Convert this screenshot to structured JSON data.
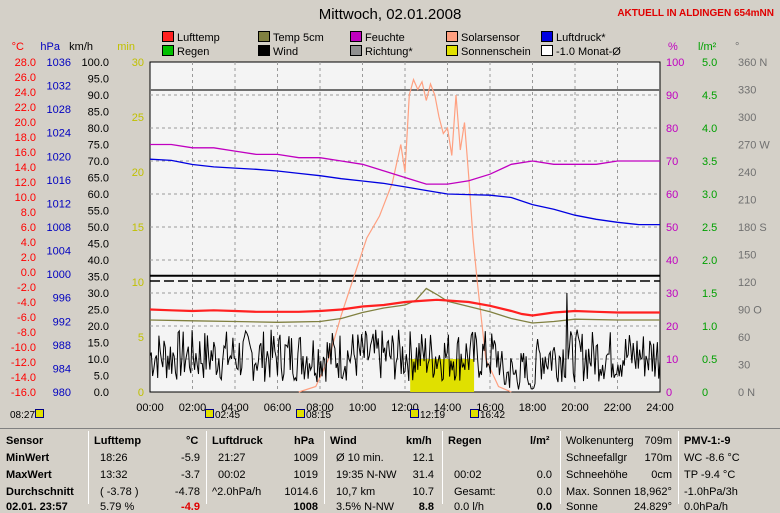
{
  "title": "Mittwoch, 02.01.2008",
  "station": "AKTUELL IN ALDINGEN 654mNN",
  "legend": [
    {
      "label": "Lufttemp",
      "color": "#ff2020"
    },
    {
      "label": "Temp 5cm",
      "color": "#808040"
    },
    {
      "label": "Feuchte",
      "color": "#c000c0"
    },
    {
      "label": "Solarsensor",
      "color": "#ffa080"
    },
    {
      "label": "Luftdruck*",
      "color": "#0000e0"
    },
    {
      "label": "Regen",
      "color": "#00c000"
    },
    {
      "label": "Wind",
      "color": "#000000"
    },
    {
      "label": "Richtung*",
      "color": "#909090"
    },
    {
      "label": "Sonnenschein",
      "color": "#e0e000"
    },
    {
      "label": "-1.0 Monat-Ø",
      "color": "#ffffff"
    }
  ],
  "axes": {
    "c": {
      "unit": "°C",
      "ticks": [
        "28.0",
        "26.0",
        "24.0",
        "22.0",
        "20.0",
        "18.0",
        "16.0",
        "14.0",
        "12.0",
        "10.0",
        "8.0",
        "6.0",
        "4.0",
        "2.0",
        "0.0",
        "-2.0",
        "-4.0",
        "-6.0",
        "-8.0",
        "-10.0",
        "-12.0",
        "-14.0",
        "-16.0"
      ],
      "color": "#ff0000"
    },
    "hpa": {
      "unit": "hPa",
      "ticks": [
        "1036",
        "1032",
        "1028",
        "1024",
        "1020",
        "1016",
        "1012",
        "1008",
        "1004",
        "1000",
        "996",
        "992",
        "988",
        "984",
        "980"
      ],
      "color": "#0000c0"
    },
    "kmh": {
      "unit": "km/h",
      "ticks": [
        "100.0",
        "95.0",
        "90.0",
        "85.0",
        "80.0",
        "75.0",
        "70.0",
        "65.0",
        "60.0",
        "55.0",
        "50.0",
        "45.0",
        "40.0",
        "35.0",
        "30.0",
        "25.0",
        "20.0",
        "15.0",
        "10.0",
        "5.0",
        "0.0"
      ],
      "color": "#000000"
    },
    "min": {
      "unit": "min",
      "ticks": [
        "30",
        "25",
        "20",
        "15",
        "10",
        "5",
        "0"
      ],
      "color": "#c0c000"
    },
    "pct": {
      "unit": "%",
      "ticks": [
        "100",
        "90",
        "80",
        "70",
        "60",
        "50",
        "40",
        "30",
        "20",
        "10",
        "0"
      ],
      "color": "#c000c0"
    },
    "lm2": {
      "unit": "l/m²",
      "ticks": [
        "5.0",
        "4.5",
        "4.0",
        "3.5",
        "3.0",
        "2.5",
        "2.0",
        "1.5",
        "1.0",
        "0.5",
        "0"
      ],
      "color": "#00a000"
    },
    "deg": {
      "unit": "°",
      "ticks": [
        "360 N",
        "330",
        "300",
        "270 W",
        "240",
        "210",
        "180 S",
        "150",
        "120",
        "90 O",
        "60",
        "30",
        "0 N"
      ],
      "color": "#707070"
    },
    "x": [
      "00:00",
      "02:00",
      "04:00",
      "06:00",
      "08:00",
      "10:00",
      "12:00",
      "14:00",
      "16:00",
      "18:00",
      "20:00",
      "22:00",
      "24:00"
    ]
  },
  "markers": [
    {
      "text": "08:27",
      "icon": "sun-small"
    },
    {
      "text": "02:45",
      "icon": "moon-rise"
    },
    {
      "text": "08:15",
      "icon": "sun-rise"
    },
    {
      "text": "12:19",
      "icon": "sun-noon"
    },
    {
      "text": "16:42",
      "icon": "sun-set"
    }
  ],
  "chart_data": {
    "type": "line",
    "title": "Mittwoch, 02.01.2008",
    "xlim": [
      0,
      24
    ],
    "series": [
      {
        "name": "Lufttemp",
        "unit": "°C",
        "color": "#ff2020",
        "x": [
          0,
          1,
          2,
          3,
          4,
          5,
          6,
          7,
          8,
          9,
          10,
          11,
          12,
          13,
          13.5,
          14,
          15,
          16,
          17,
          17.5,
          18,
          19,
          20,
          21,
          22,
          23,
          24
        ],
        "y": [
          -5.0,
          -5.1,
          -5.2,
          -5.1,
          -5.2,
          -5.3,
          -5.3,
          -5.3,
          -5.2,
          -5.0,
          -4.6,
          -4.4,
          -4.0,
          -3.8,
          -3.7,
          -3.8,
          -4.0,
          -4.5,
          -5.2,
          -5.6,
          -5.8,
          -5.4,
          -5.2,
          -5.3,
          -5.4,
          -5.4,
          -5.4
        ]
      },
      {
        "name": "Temp 5cm",
        "unit": "°C",
        "color": "#808040",
        "x": [
          0,
          2,
          4,
          6,
          8,
          9,
          10,
          11,
          12,
          12.5,
          13,
          13.5,
          14,
          15,
          16,
          17,
          18,
          19,
          20,
          22,
          24
        ],
        "y": [
          -6.4,
          -6.5,
          -6.6,
          -6.7,
          -6.6,
          -6.2,
          -5.4,
          -4.8,
          -4.4,
          -3.8,
          -2.2,
          -3.0,
          -3.9,
          -4.6,
          -5.3,
          -6.2,
          -6.8,
          -6.6,
          -6.3,
          -6.4,
          -6.4
        ]
      },
      {
        "name": "Feuchte",
        "unit": "%",
        "color": "#c000c0",
        "x": [
          0,
          1,
          2,
          3,
          4,
          5,
          6,
          7,
          8,
          9,
          10,
          11,
          12,
          13,
          13.5,
          14,
          15,
          16,
          17,
          18,
          19,
          20,
          21,
          22,
          23,
          24
        ],
        "y": [
          75,
          75,
          74,
          74,
          73,
          72,
          72,
          71,
          71,
          70,
          69,
          67,
          65,
          63,
          63,
          63,
          64,
          66,
          69,
          70,
          69,
          69,
          69,
          70,
          70,
          70
        ]
      },
      {
        "name": "Luftdruck*",
        "unit": "hPa",
        "color": "#0000e0",
        "x": [
          0,
          1,
          2,
          3,
          4,
          5,
          6,
          7,
          8,
          9,
          10,
          11,
          12,
          13,
          14,
          15,
          16,
          17,
          18,
          19,
          20,
          21,
          22,
          23,
          24
        ],
        "y": [
          1019.5,
          1019.3,
          1018.6,
          1018.2,
          1018.0,
          1017.8,
          1017.5,
          1017.1,
          1016.7,
          1016.2,
          1015.8,
          1015.4,
          1014.8,
          1014.2,
          1013.6,
          1013.5,
          1013.4,
          1013.0,
          1011.8,
          1011.0,
          1010.0,
          1009.3,
          1008.8,
          1008.4,
          1008.4
        ]
      },
      {
        "name": "Solarsensor",
        "unit": "min",
        "color": "#ffa080",
        "x": [
          7,
          7.8,
          8.4,
          9,
          9.6,
          10.2,
          10.8,
          11.4,
          11.8,
          12,
          12.2,
          12.4,
          12.6,
          12.8,
          13,
          13.2,
          13.4,
          13.6,
          13.8,
          14,
          14.2,
          14.4,
          14.6,
          14.8,
          15,
          15.2,
          15.4,
          15.8,
          16.4,
          17
        ],
        "y": [
          0,
          0.5,
          3,
          7,
          10.5,
          14,
          16,
          19,
          22.5,
          20,
          27,
          28.4,
          27.5,
          28.2,
          26.5,
          28,
          27,
          25,
          23.5,
          24,
          21.5,
          27,
          22,
          24.5,
          19.5,
          14,
          10,
          3,
          0.5,
          0
        ]
      },
      {
        "name": "Sonnenschein",
        "unit": "min",
        "color": "#e0e000",
        "x": [
          12.25,
          12.5,
          12.75,
          13,
          13.25,
          13.5,
          13.75,
          14,
          14.25,
          14.5,
          14.75,
          15
        ],
        "y": [
          3,
          1.5,
          3,
          3,
          2.5,
          3,
          3,
          2.5,
          3,
          2,
          3,
          3
        ]
      },
      {
        "name": "-1.0 Monat-Ø",
        "unit": "°C",
        "color": "#000000",
        "y": -0.5
      },
      {
        "name": "Wind",
        "unit": "km/h",
        "color": "#000000",
        "baseline": 11,
        "peak": {
          "x": 19.6,
          "y": 30
        }
      }
    ]
  },
  "table": {
    "c1": {
      "hdr": "Sensor",
      "r1": "MinWert",
      "r2": "MaxWert",
      "r3": "Durchschnitt",
      "r4": "02.01. 23:57"
    },
    "c2": {
      "hdr": "Lufttemp",
      "unit": "°C",
      "r1a": "18:26",
      "r1b": "-5.9",
      "r2a": "13:32",
      "r2b": "-3.7",
      "r3a": "( -3.78 )",
      "r3b": "-4.78",
      "r4a": "5.79 %",
      "r4b": "-4.9"
    },
    "c3": {
      "hdr": "Luftdruck",
      "unit": "hPa",
      "r1a": "21:27",
      "r1b": "1009",
      "r2a": "00:02",
      "r2b": "1019",
      "r3a": "^2.0hPa/h",
      "r3b": "1014.6",
      "r4a": "",
      "r4b": "1008"
    },
    "c4": {
      "hdr": "Wind",
      "unit": "km/h",
      "r1a": "Ø 10 min.",
      "r1b": "12.1",
      "r2a": "19:35   N-NW",
      "r2b": "31.4",
      "r3a": "10,7 km",
      "r3b": "10.7",
      "r4a": "3.5% N-NW",
      "r4b": "8.8"
    },
    "c5": {
      "hdr": "Regen",
      "unit": "l/m²",
      "r2a": "00:02",
      "r2b": "0.0",
      "r3a": "Gesamt:",
      "r3b": "0.0",
      "r4a": "0.0 l/h",
      "r4b": "0.0"
    },
    "c6": {
      "r0a": "Wolkenunterg",
      "r0b": "709m",
      "r1a": "Schneefallgr",
      "r1b": "170m",
      "r2a": "Schneehöhe",
      "r2b": "0cm",
      "r3a": "Max. Sonnen 18,962°",
      "r3b": "",
      "r4a": "Sonne",
      "r4b": "24.829°"
    },
    "c7": {
      "r0": "PMV-1:-9",
      "r1": "WC -8.6 °C",
      "r2": "TP -9.4 °C",
      "r3": "-1.0hPa/3h",
      "r4": "0.0hPa/h"
    }
  }
}
